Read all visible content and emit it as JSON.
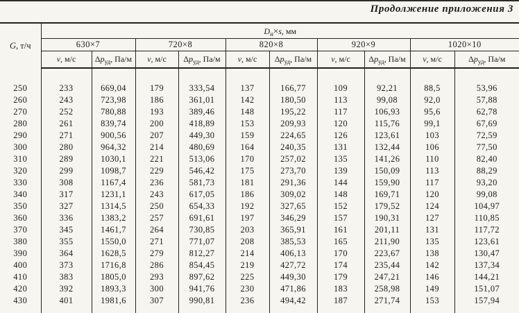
{
  "page_title": "Продолжение приложения 3",
  "colors": {
    "page_background": "#f6f5f0",
    "ink": "#1b1b1b",
    "rule": "#222220"
  },
  "table": {
    "g_header": {
      "symbol": "G",
      "unit": ", т/ч"
    },
    "d_header": {
      "symbol": "D",
      "sub": "н",
      "times": "×",
      "symbol2": "s",
      "unit": ", мм"
    },
    "groups": [
      "630×7",
      "720×8",
      "820×8",
      "920×9",
      "1020×10"
    ],
    "v_header": {
      "symbol": "v",
      "unit": ", м/с"
    },
    "dp_header": {
      "prefix": "Δ",
      "symbol": "p",
      "sub": "уд",
      "unit": ", Па/м"
    },
    "rows": [
      [
        "250",
        "233",
        "669,04",
        "179",
        "333,54",
        "137",
        "166,77",
        "109",
        "92,21",
        "88,5",
        "53,96"
      ],
      [
        "260",
        "243",
        "723,98",
        "186",
        "361,01",
        "142",
        "180,50",
        "113",
        "99,08",
        "92,0",
        "57,88"
      ],
      [
        "270",
        "252",
        "780,88",
        "193",
        "389,46",
        "148",
        "195,22",
        "117",
        "106,93",
        "95,6",
        "62,78"
      ],
      [
        "280",
        "261",
        "839,74",
        "200",
        "418,89",
        "153",
        "209,93",
        "120",
        "115,76",
        "99,1",
        "67,69"
      ],
      [
        "290",
        "271",
        "900,56",
        "207",
        "449,30",
        "159",
        "224,65",
        "126",
        "123,61",
        "103",
        "72,59"
      ],
      [
        "300",
        "280",
        "964,32",
        "214",
        "480,69",
        "164",
        "240,35",
        "131",
        "132,44",
        "106",
        "77,50"
      ],
      [
        "310",
        "289",
        "1030,1",
        "221",
        "513,06",
        "170",
        "257,02",
        "135",
        "141,26",
        "110",
        "82,40"
      ],
      [
        "320",
        "299",
        "1098,7",
        "229",
        "546,42",
        "175",
        "273,70",
        "139",
        "150,09",
        "113",
        "88,29"
      ],
      [
        "330",
        "308",
        "1167,4",
        "236",
        "581,73",
        "181",
        "291,36",
        "144",
        "159,90",
        "117",
        "93,20"
      ],
      [
        "340",
        "317",
        "1231,1",
        "243",
        "617,05",
        "186",
        "309,02",
        "148",
        "169,71",
        "120",
        "99,08"
      ],
      [
        "350",
        "327",
        "1314,5",
        "250",
        "654,33",
        "192",
        "327,65",
        "152",
        "179,52",
        "124",
        "104,97"
      ],
      [
        "360",
        "336",
        "1383,2",
        "257",
        "691,61",
        "197",
        "346,29",
        "157",
        "190,31",
        "127",
        "110,85"
      ],
      [
        "370",
        "345",
        "1461,7",
        "264",
        "730,85",
        "203",
        "365,91",
        "161",
        "201,11",
        "131",
        "117,72"
      ],
      [
        "380",
        "355",
        "1550,0",
        "271",
        "771,07",
        "208",
        "385,53",
        "165",
        "211,90",
        "135",
        "123,61"
      ],
      [
        "390",
        "364",
        "1628,5",
        "279",
        "812,27",
        "214",
        "406,13",
        "170",
        "223,67",
        "138",
        "130,47"
      ],
      [
        "400",
        "373",
        "1716,8",
        "286",
        "854,45",
        "219",
        "427,72",
        "174",
        "235,44",
        "142",
        "137,34"
      ],
      [
        "410",
        "383",
        "1805,0",
        "293",
        "897,62",
        "225",
        "449,30",
        "179",
        "247,21",
        "146",
        "144,21"
      ],
      [
        "420",
        "392",
        "1893,3",
        "300",
        "941,76",
        "230",
        "471,86",
        "183",
        "258,98",
        "149",
        "151,07"
      ],
      [
        "430",
        "401",
        "1981,6",
        "307",
        "990,81",
        "236",
        "494,42",
        "187",
        "271,74",
        "153",
        "157,94"
      ]
    ]
  }
}
